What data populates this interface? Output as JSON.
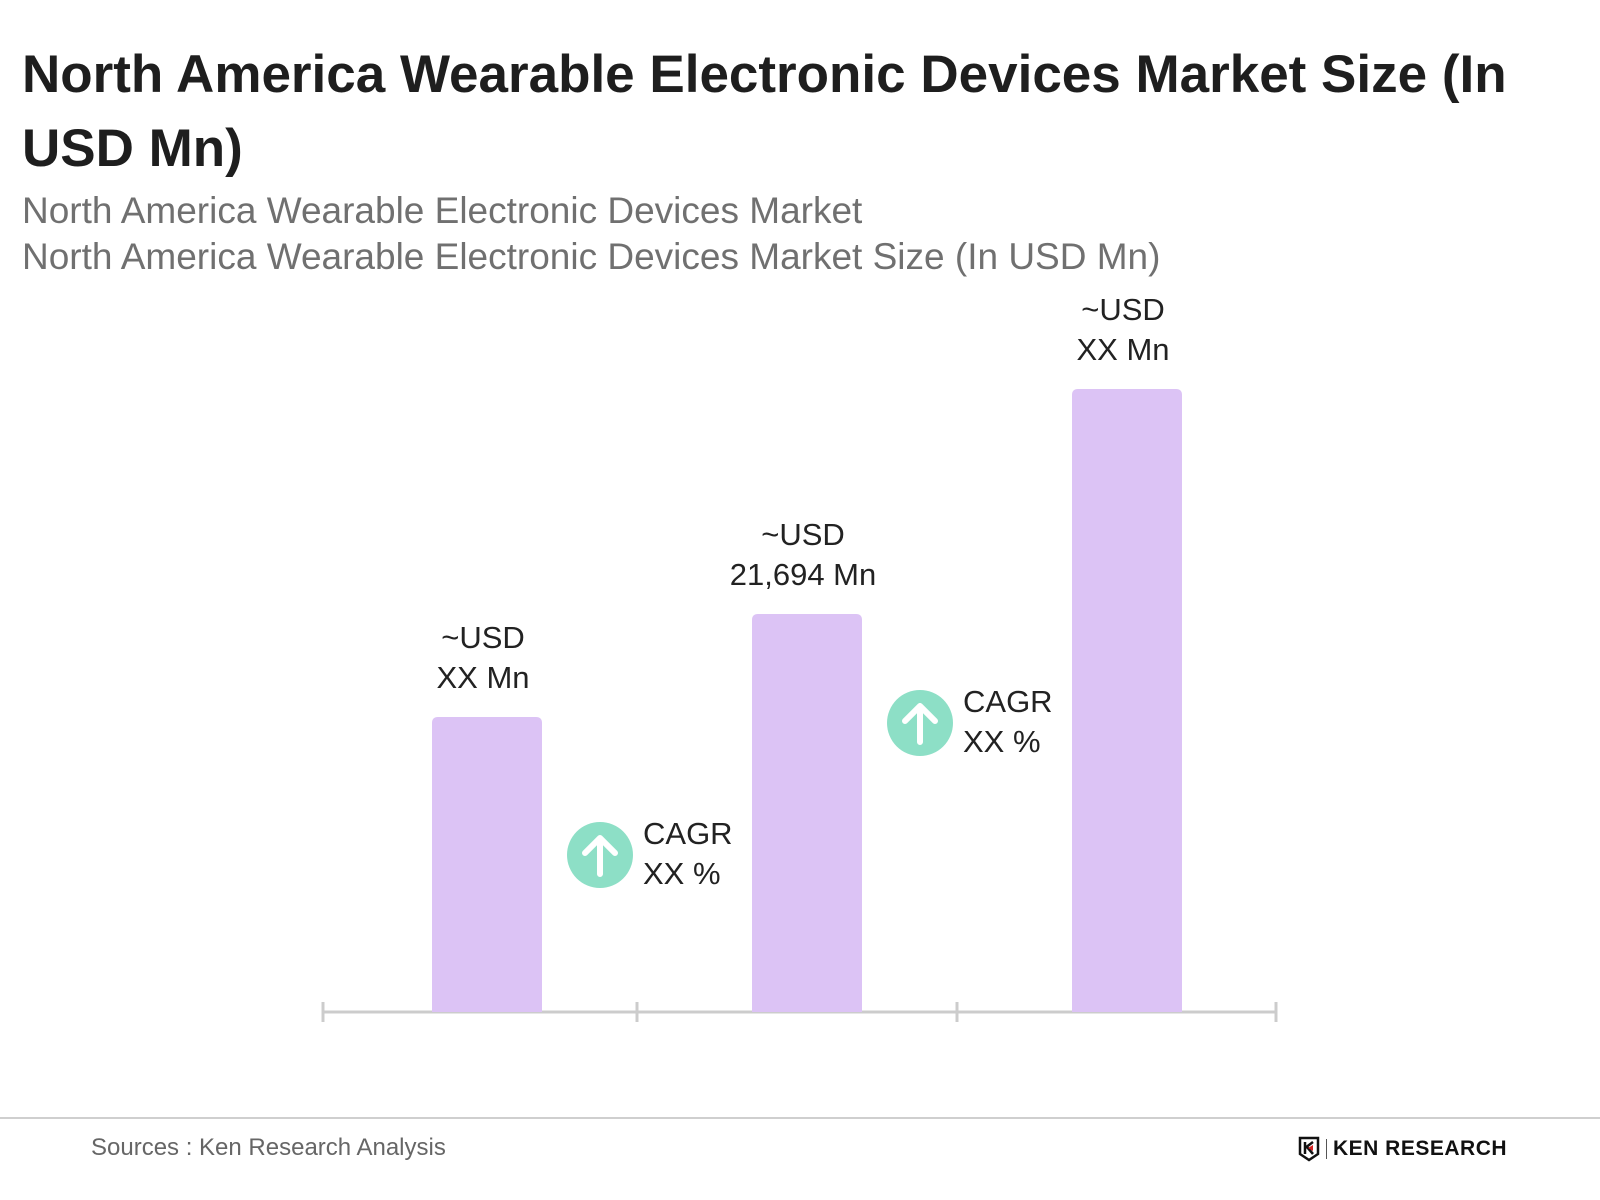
{
  "header": {
    "title": "North America Wearable Electronic Devices Market Size (In USD Mn)",
    "subtitle_1": "North America Wearable Electronic Devices Market",
    "subtitle_2": "North America Wearable Electronic Devices Market Size (In USD Mn)"
  },
  "chart_data": {
    "type": "bar",
    "title": "North America Wearable Electronic Devices Market Size (In USD Mn)",
    "categories": [
      "",
      "",
      ""
    ],
    "values": [
      16080,
      21694,
      33960
    ],
    "data_labels": [
      {
        "line1": "~USD",
        "line2": "XX Mn"
      },
      {
        "line1": "~USD",
        "line2": "21,694 Mn"
      },
      {
        "line1": "~USD",
        "line2": "XX Mn"
      }
    ],
    "annotations": [
      {
        "label": "CAGR",
        "value": "XX %",
        "icon": "arrow-up-circle-icon"
      },
      {
        "label": "CAGR",
        "value": "XX %",
        "icon": "arrow-up-circle-icon"
      }
    ],
    "xlabel": "",
    "ylabel": "",
    "grid": false,
    "colors": {
      "bar": "#dcc3f5",
      "cagr_icon": "#8ddfc6",
      "axis": "#cccccc"
    }
  },
  "footer": {
    "source": "Sources : Ken Research Analysis",
    "logo_text": "KEN RESEARCH"
  }
}
